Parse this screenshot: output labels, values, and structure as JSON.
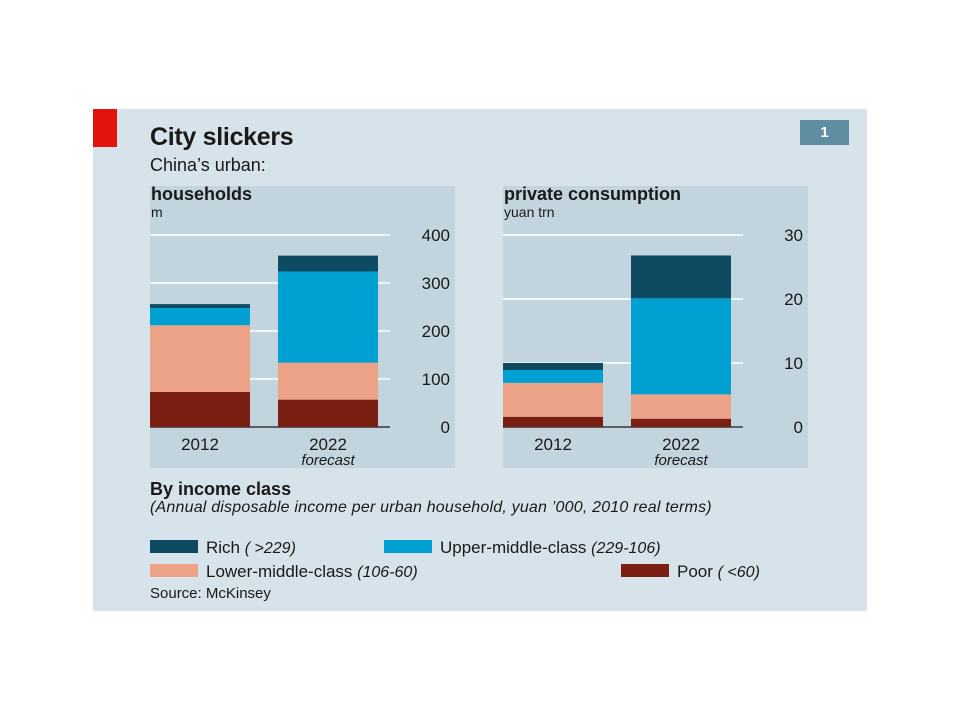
{
  "title": "City slickers",
  "subtitle": "China’s urban:",
  "badge": "1",
  "colors": {
    "rich": "#0e4a62",
    "upper": "#00a0d2",
    "lower": "#eba286",
    "poor": "#7b1f12",
    "grid": "#ffffff",
    "panel_bg": "#c2d4de",
    "card_bg": "#d7e3ea",
    "accent": "#e3120b"
  },
  "chart_data": [
    {
      "type": "bar",
      "stacked": true,
      "title": "households",
      "ylabel": "m",
      "categories": [
        "2012",
        "2022"
      ],
      "category_notes": [
        "",
        "forecast"
      ],
      "ylim": [
        0,
        400
      ],
      "yticks": [
        0,
        100,
        200,
        300,
        400
      ],
      "series": [
        {
          "name": "Poor",
          "key": "poor",
          "values": [
            73,
            57
          ]
        },
        {
          "name": "Lower-middle-class",
          "key": "lower",
          "values": [
            139,
            77
          ]
        },
        {
          "name": "Upper-middle-class",
          "key": "upper",
          "values": [
            36,
            190
          ]
        },
        {
          "name": "Rich",
          "key": "rich",
          "values": [
            8,
            33
          ]
        }
      ],
      "grid": true
    },
    {
      "type": "bar",
      "stacked": true,
      "title": "private consumption",
      "ylabel": "yuan trn",
      "categories": [
        "2012",
        "2022"
      ],
      "category_notes": [
        "",
        "forecast"
      ],
      "ylim": [
        0,
        30
      ],
      "yticks": [
        0,
        10,
        20,
        30
      ],
      "series": [
        {
          "name": "Poor",
          "key": "poor",
          "values": [
            1.6,
            1.3
          ]
        },
        {
          "name": "Lower-middle-class",
          "key": "lower",
          "values": [
            5.3,
            3.8
          ]
        },
        {
          "name": "Upper-middle-class",
          "key": "upper",
          "values": [
            2.0,
            15.0
          ]
        },
        {
          "name": "Rich",
          "key": "rich",
          "values": [
            1.1,
            6.7
          ]
        }
      ],
      "grid": true
    }
  ],
  "legend": {
    "title": "By income class",
    "note": "(Annual disposable income per urban household, yuan ’000, 2010 real terms)",
    "items": [
      {
        "key": "rich",
        "label": "Rich",
        "range": "( >229)"
      },
      {
        "key": "upper",
        "label": "Upper-middle-class",
        "range": "(229-106)"
      },
      {
        "key": "lower",
        "label": "Lower-middle-class",
        "range": "(106-60)"
      },
      {
        "key": "poor",
        "label": "Poor",
        "range": "( <60)"
      }
    ]
  },
  "source": "Source: McKinsey"
}
